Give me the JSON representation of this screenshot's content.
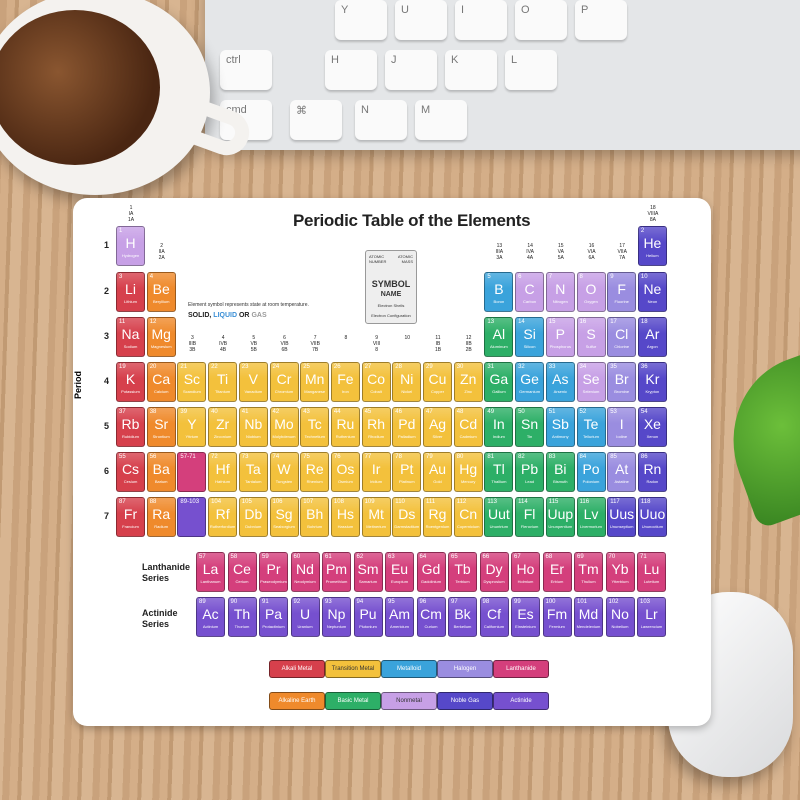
{
  "title": "Periodic Table of the Elements",
  "note": "Element symbol represents state at room temperature.",
  "state": {
    "solid": "SOLID,",
    "liquid": "LIQUID",
    "or": "OR",
    "gas": "GAS"
  },
  "key_box": {
    "atomic_number": "ATOMIC NUMBER",
    "atomic_mass": "ATOMIC MASS",
    "symbol": "SYMBOL",
    "name": "NAME",
    "shells": "Electron Shells",
    "config": "Electron Configuration"
  },
  "period_title": "Period",
  "periods": [
    "1",
    "2",
    "3",
    "4",
    "5",
    "6",
    "7"
  ],
  "lanthanide_label": "Lanthanide Series",
  "actinide_label": "Actinide Series",
  "keyboard_keys": [
    "Y",
    "U",
    "I",
    "O",
    "P",
    "H",
    "J",
    "K",
    "L",
    "N",
    "M",
    "ctrl",
    "cmd",
    "⌘"
  ],
  "colors": {
    "alkali": "#d6404c",
    "alkaline": "#ef8a2c",
    "transition": "#f3c13c",
    "basic": "#2daf67",
    "metalloid": "#3aa3db",
    "nonmetal": "#c7a0e6",
    "halogen": "#9a8de0",
    "noble": "#5648c9",
    "lanthanide": "#d43f7c",
    "actinide": "#7650cf"
  },
  "legend": [
    {
      "label": "Alkali Metal",
      "cat": "alkali"
    },
    {
      "label": "Transition Metal",
      "cat": "transition"
    },
    {
      "label": "Metalloid",
      "cat": "metalloid"
    },
    {
      "label": "Halogen",
      "cat": "halogen"
    },
    {
      "label": "Lanthanide",
      "cat": "lanthanide"
    },
    {
      "label": "Alkaline Earth",
      "cat": "alkaline"
    },
    {
      "label": "Basic Metal",
      "cat": "basic"
    },
    {
      "label": "Nonmetal",
      "cat": "nonmetal"
    },
    {
      "label": "Noble Gas",
      "cat": "noble"
    },
    {
      "label": "Actinide",
      "cat": "actinide"
    }
  ],
  "groups": [
    [
      "1",
      "IA",
      "1A"
    ],
    [
      "2",
      "IIA",
      "2A"
    ],
    [
      "3",
      "IIIB",
      "3B"
    ],
    [
      "4",
      "IVB",
      "4B"
    ],
    [
      "5",
      "VB",
      "5B"
    ],
    [
      "6",
      "VIB",
      "6B"
    ],
    [
      "7",
      "VIIB",
      "7B"
    ],
    [
      "8",
      "",
      ""
    ],
    [
      "9",
      "VIII",
      "8"
    ],
    [
      "10",
      "",
      ""
    ],
    [
      "11",
      "IB",
      "1B"
    ],
    [
      "12",
      "IIB",
      "2B"
    ],
    [
      "13",
      "IIIA",
      "3A"
    ],
    [
      "14",
      "IVA",
      "4A"
    ],
    [
      "15",
      "VA",
      "5A"
    ],
    [
      "16",
      "VIA",
      "6A"
    ],
    [
      "17",
      "VIIA",
      "7A"
    ],
    [
      "18",
      "VIIIA",
      "8A"
    ]
  ],
  "placeholders": [
    {
      "label": "57-71",
      "cat": "lanthanide"
    },
    {
      "label": "89-103",
      "cat": "actinide"
    }
  ],
  "elements": [
    [
      1,
      "H",
      "Hydrogen",
      1,
      1,
      "nonmetal"
    ],
    [
      2,
      "He",
      "Helium",
      1,
      18,
      "noble"
    ],
    [
      3,
      "Li",
      "Lithium",
      2,
      1,
      "alkali"
    ],
    [
      4,
      "Be",
      "Beryllium",
      2,
      2,
      "alkaline"
    ],
    [
      5,
      "B",
      "Boron",
      2,
      13,
      "metalloid"
    ],
    [
      6,
      "C",
      "Carbon",
      2,
      14,
      "nonmetal"
    ],
    [
      7,
      "N",
      "Nitrogen",
      2,
      15,
      "nonmetal"
    ],
    [
      8,
      "O",
      "Oxygen",
      2,
      16,
      "nonmetal"
    ],
    [
      9,
      "F",
      "Fluorine",
      2,
      17,
      "halogen"
    ],
    [
      10,
      "Ne",
      "Neon",
      2,
      18,
      "noble"
    ],
    [
      11,
      "Na",
      "Sodium",
      3,
      1,
      "alkali"
    ],
    [
      12,
      "Mg",
      "Magnesium",
      3,
      2,
      "alkaline"
    ],
    [
      13,
      "Al",
      "Aluminum",
      3,
      13,
      "basic"
    ],
    [
      14,
      "Si",
      "Silicon",
      3,
      14,
      "metalloid"
    ],
    [
      15,
      "P",
      "Phosphorus",
      3,
      15,
      "nonmetal"
    ],
    [
      16,
      "S",
      "Sulfur",
      3,
      16,
      "nonmetal"
    ],
    [
      17,
      "Cl",
      "Chlorine",
      3,
      17,
      "halogen"
    ],
    [
      18,
      "Ar",
      "Argon",
      3,
      18,
      "noble"
    ],
    [
      19,
      "K",
      "Potassium",
      4,
      1,
      "alkali"
    ],
    [
      20,
      "Ca",
      "Calcium",
      4,
      2,
      "alkaline"
    ],
    [
      21,
      "Sc",
      "Scandium",
      4,
      3,
      "transition"
    ],
    [
      22,
      "Ti",
      "Titanium",
      4,
      4,
      "transition"
    ],
    [
      23,
      "V",
      "Vanadium",
      4,
      5,
      "transition"
    ],
    [
      24,
      "Cr",
      "Chromium",
      4,
      6,
      "transition"
    ],
    [
      25,
      "Mn",
      "Manganese",
      4,
      7,
      "transition"
    ],
    [
      26,
      "Fe",
      "Iron",
      4,
      8,
      "transition"
    ],
    [
      27,
      "Co",
      "Cobalt",
      4,
      9,
      "transition"
    ],
    [
      28,
      "Ni",
      "Nickel",
      4,
      10,
      "transition"
    ],
    [
      29,
      "Cu",
      "Copper",
      4,
      11,
      "transition"
    ],
    [
      30,
      "Zn",
      "Zinc",
      4,
      12,
      "transition"
    ],
    [
      31,
      "Ga",
      "Gallium",
      4,
      13,
      "basic"
    ],
    [
      32,
      "Ge",
      "Germanium",
      4,
      14,
      "metalloid"
    ],
    [
      33,
      "As",
      "Arsenic",
      4,
      15,
      "metalloid"
    ],
    [
      34,
      "Se",
      "Selenium",
      4,
      16,
      "nonmetal"
    ],
    [
      35,
      "Br",
      "Bromine",
      4,
      17,
      "halogen"
    ],
    [
      36,
      "Kr",
      "Krypton",
      4,
      18,
      "noble"
    ],
    [
      37,
      "Rb",
      "Rubidium",
      5,
      1,
      "alkali"
    ],
    [
      38,
      "Sr",
      "Strontium",
      5,
      2,
      "alkaline"
    ],
    [
      39,
      "Y",
      "Yttrium",
      5,
      3,
      "transition"
    ],
    [
      40,
      "Zr",
      "Zirconium",
      5,
      4,
      "transition"
    ],
    [
      41,
      "Nb",
      "Niobium",
      5,
      5,
      "transition"
    ],
    [
      42,
      "Mo",
      "Molybdenum",
      5,
      6,
      "transition"
    ],
    [
      43,
      "Tc",
      "Technetium",
      5,
      7,
      "transition"
    ],
    [
      44,
      "Ru",
      "Ruthenium",
      5,
      8,
      "transition"
    ],
    [
      45,
      "Rh",
      "Rhodium",
      5,
      9,
      "transition"
    ],
    [
      46,
      "Pd",
      "Palladium",
      5,
      10,
      "transition"
    ],
    [
      47,
      "Ag",
      "Silver",
      5,
      11,
      "transition"
    ],
    [
      48,
      "Cd",
      "Cadmium",
      5,
      12,
      "transition"
    ],
    [
      49,
      "In",
      "Indium",
      5,
      13,
      "basic"
    ],
    [
      50,
      "Sn",
      "Tin",
      5,
      14,
      "basic"
    ],
    [
      51,
      "Sb",
      "Antimony",
      5,
      15,
      "metalloid"
    ],
    [
      52,
      "Te",
      "Tellurium",
      5,
      16,
      "metalloid"
    ],
    [
      53,
      "I",
      "Iodine",
      5,
      17,
      "halogen"
    ],
    [
      54,
      "Xe",
      "Xenon",
      5,
      18,
      "noble"
    ],
    [
      55,
      "Cs",
      "Cesium",
      6,
      1,
      "alkali"
    ],
    [
      56,
      "Ba",
      "Barium",
      6,
      2,
      "alkaline"
    ],
    [
      72,
      "Hf",
      "Hafnium",
      6,
      4,
      "transition"
    ],
    [
      73,
      "Ta",
      "Tantalum",
      6,
      5,
      "transition"
    ],
    [
      74,
      "W",
      "Tungsten",
      6,
      6,
      "transition"
    ],
    [
      75,
      "Re",
      "Rhenium",
      6,
      7,
      "transition"
    ],
    [
      76,
      "Os",
      "Osmium",
      6,
      8,
      "transition"
    ],
    [
      77,
      "Ir",
      "Iridium",
      6,
      9,
      "transition"
    ],
    [
      78,
      "Pt",
      "Platinum",
      6,
      10,
      "transition"
    ],
    [
      79,
      "Au",
      "Gold",
      6,
      11,
      "transition"
    ],
    [
      80,
      "Hg",
      "Mercury",
      6,
      12,
      "transition"
    ],
    [
      81,
      "Tl",
      "Thallium",
      6,
      13,
      "basic"
    ],
    [
      82,
      "Pb",
      "Lead",
      6,
      14,
      "basic"
    ],
    [
      83,
      "Bi",
      "Bismuth",
      6,
      15,
      "basic"
    ],
    [
      84,
      "Po",
      "Polonium",
      6,
      16,
      "metalloid"
    ],
    [
      85,
      "At",
      "Astatine",
      6,
      17,
      "halogen"
    ],
    [
      86,
      "Rn",
      "Radon",
      6,
      18,
      "noble"
    ],
    [
      87,
      "Fr",
      "Francium",
      7,
      1,
      "alkali"
    ],
    [
      88,
      "Ra",
      "Radium",
      7,
      2,
      "alkaline"
    ],
    [
      104,
      "Rf",
      "Rutherfordium",
      7,
      4,
      "transition"
    ],
    [
      105,
      "Db",
      "Dubnium",
      7,
      5,
      "transition"
    ],
    [
      106,
      "Sg",
      "Seaborgium",
      7,
      6,
      "transition"
    ],
    [
      107,
      "Bh",
      "Bohrium",
      7,
      7,
      "transition"
    ],
    [
      108,
      "Hs",
      "Hassium",
      7,
      8,
      "transition"
    ],
    [
      109,
      "Mt",
      "Meitnerium",
      7,
      9,
      "transition"
    ],
    [
      110,
      "Ds",
      "Darmstadtium",
      7,
      10,
      "transition"
    ],
    [
      111,
      "Rg",
      "Roentgenium",
      7,
      11,
      "transition"
    ],
    [
      112,
      "Cn",
      "Copernicium",
      7,
      12,
      "transition"
    ],
    [
      113,
      "Uut",
      "Ununtrium",
      7,
      13,
      "basic"
    ],
    [
      114,
      "Fl",
      "Flerovium",
      7,
      14,
      "basic"
    ],
    [
      115,
      "Uup",
      "Ununpentium",
      7,
      15,
      "basic"
    ],
    [
      116,
      "Lv",
      "Livermorium",
      7,
      16,
      "basic"
    ],
    [
      117,
      "Uus",
      "Ununseptium",
      7,
      17,
      "noble"
    ],
    [
      118,
      "Uuo",
      "Ununoctium",
      7,
      18,
      "noble"
    ]
  ],
  "lanthanides": [
    [
      57,
      "La",
      "Lanthanum"
    ],
    [
      58,
      "Ce",
      "Cerium"
    ],
    [
      59,
      "Pr",
      "Praseodymium"
    ],
    [
      60,
      "Nd",
      "Neodymium"
    ],
    [
      61,
      "Pm",
      "Promethium"
    ],
    [
      62,
      "Sm",
      "Samarium"
    ],
    [
      63,
      "Eu",
      "Europium"
    ],
    [
      64,
      "Gd",
      "Gadolinium"
    ],
    [
      65,
      "Tb",
      "Terbium"
    ],
    [
      66,
      "Dy",
      "Dysprosium"
    ],
    [
      67,
      "Ho",
      "Holmium"
    ],
    [
      68,
      "Er",
      "Erbium"
    ],
    [
      69,
      "Tm",
      "Thulium"
    ],
    [
      70,
      "Yb",
      "Ytterbium"
    ],
    [
      71,
      "Lu",
      "Lutetium"
    ]
  ],
  "actinides": [
    [
      89,
      "Ac",
      "Actinium"
    ],
    [
      90,
      "Th",
      "Thorium"
    ],
    [
      91,
      "Pa",
      "Protactinium"
    ],
    [
      92,
      "U",
      "Uranium"
    ],
    [
      93,
      "Np",
      "Neptunium"
    ],
    [
      94,
      "Pu",
      "Plutonium"
    ],
    [
      95,
      "Am",
      "Americium"
    ],
    [
      96,
      "Cm",
      "Curium"
    ],
    [
      97,
      "Bk",
      "Berkelium"
    ],
    [
      98,
      "Cf",
      "Californium"
    ],
    [
      99,
      "Es",
      "Einsteinium"
    ],
    [
      100,
      "Fm",
      "Fermium"
    ],
    [
      101,
      "Md",
      "Mendelevium"
    ],
    [
      102,
      "No",
      "Nobelium"
    ],
    [
      103,
      "Lr",
      "Lawrencium"
    ]
  ]
}
